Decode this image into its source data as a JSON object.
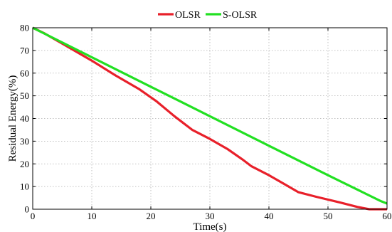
{
  "chart_data": {
    "type": "line",
    "title": "",
    "xlabel": "Time(s)",
    "ylabel": "Residual Energy(%)",
    "xlim": [
      0,
      60
    ],
    "ylim": [
      0,
      80
    ],
    "xticks": [
      0,
      10,
      20,
      30,
      40,
      50,
      60
    ],
    "yticks": [
      0,
      10,
      20,
      30,
      40,
      50,
      60,
      70,
      80
    ],
    "grid": true,
    "legend_position": "top-center",
    "series": [
      {
        "name": "OLSR",
        "color": "#e8202a",
        "x": [
          0,
          2,
          5,
          10,
          14,
          18,
          21,
          24,
          27,
          30,
          33,
          35.5,
          37,
          40,
          43,
          45,
          48,
          52,
          55,
          57,
          60
        ],
        "y": [
          80,
          77.5,
          73,
          65.5,
          59,
          53,
          47.5,
          41,
          35,
          31,
          26.5,
          22,
          19,
          15,
          10.5,
          7.5,
          5.5,
          3,
          1,
          0,
          0
        ]
      },
      {
        "name": "S-OLSR",
        "color": "#22e022",
        "x": [
          0,
          10,
          20,
          30,
          40,
          50,
          59,
          60
        ],
        "y": [
          80,
          67,
          54,
          41,
          28,
          15,
          3.5,
          2.5
        ]
      }
    ]
  }
}
